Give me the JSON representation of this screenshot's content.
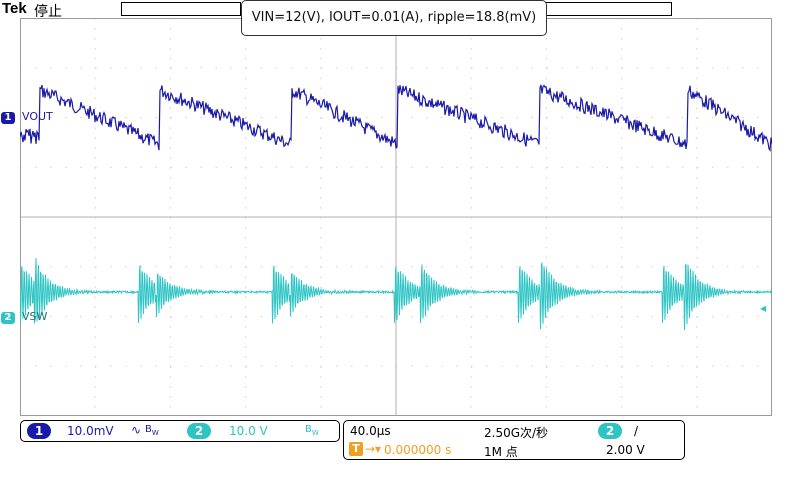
{
  "header": {
    "brand": "Tek",
    "run_state": "停止"
  },
  "annotation": {
    "text": "VIN=12(V), IOUT=0.01(A), ripple=18.8(mV)"
  },
  "channels": [
    {
      "number": "1",
      "name": "VOUT",
      "color": "#1a1aa8"
    },
    {
      "number": "2",
      "name": "VSW",
      "color": "#2ec4c4"
    }
  ],
  "readout": {
    "ch1_num": "1",
    "ch1_scale": "10.0mV",
    "ch1_coupling_icon": "ac-coupling-icon",
    "ch1_bw": "B",
    "ch1_bw_sub": "W",
    "ch2_num": "2",
    "ch2_scale": "10.0 V",
    "ch2_bw": "B",
    "ch2_bw_sub": "W",
    "timebase": "40.0μs",
    "sample_rate": "2.50G次/秒",
    "trigger_icon": "T",
    "trigger_pos": "0.000000 s",
    "record_length": "1M 点",
    "trig_source": "2",
    "trig_slope": "/",
    "trig_level": "2.00 V"
  },
  "colors": {
    "ch1": "#1a1aa8",
    "ch2": "#2ec4c4",
    "grid": "#d8d8d8",
    "trigger": "#f0a020"
  }
}
